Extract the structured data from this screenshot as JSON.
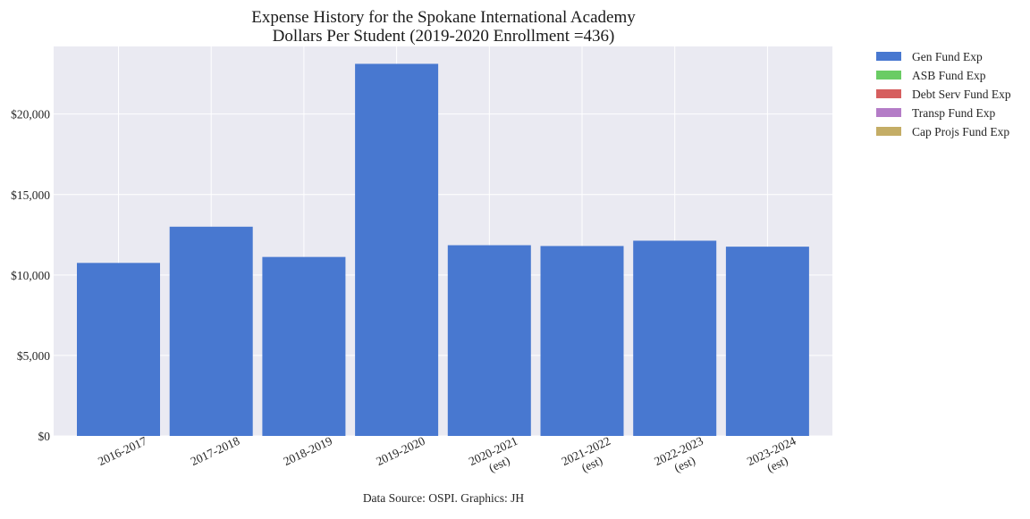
{
  "chart_data": {
    "type": "bar",
    "title_lines": [
      "Expense History for the Spokane International Academy",
      "Dollars Per Student (2019-2020 Enrollment =436)"
    ],
    "categories": [
      [
        "2016-2017"
      ],
      [
        "2017-2018"
      ],
      [
        "2018-2019"
      ],
      [
        "2019-2020"
      ],
      [
        "2020-2021",
        "(est)"
      ],
      [
        "2021-2022",
        "(est)"
      ],
      [
        "2022-2023",
        "(est)"
      ],
      [
        "2023-2024",
        "(est)"
      ]
    ],
    "series": [
      {
        "name": "Gen Fund Exp",
        "color": "#4878d0",
        "values": [
          10750,
          13000,
          11120,
          23120,
          11850,
          11800,
          12130,
          11760
        ]
      },
      {
        "name": "ASB Fund Exp",
        "color": "#6acc64",
        "values": [
          0,
          0,
          0,
          0,
          0,
          0,
          0,
          0
        ]
      },
      {
        "name": "Debt Serv Fund Exp",
        "color": "#d65f5f",
        "values": [
          0,
          0,
          0,
          0,
          0,
          0,
          0,
          0
        ]
      },
      {
        "name": "Transp Fund Exp",
        "color": "#b47cc7",
        "values": [
          0,
          0,
          0,
          0,
          0,
          0,
          0,
          0
        ]
      },
      {
        "name": "Cap Projs Fund Exp",
        "color": "#c4ad66",
        "values": [
          0,
          0,
          0,
          0,
          0,
          0,
          0,
          0
        ]
      }
    ],
    "stacked": true,
    "ylim": [
      0,
      24200
    ],
    "yticks": [
      {
        "value": 0,
        "label": "$0"
      },
      {
        "value": 5000,
        "label": "$5,000"
      },
      {
        "value": 10000,
        "label": "$10,000"
      },
      {
        "value": 15000,
        "label": "$15,000"
      },
      {
        "value": 20000,
        "label": "$20,000"
      }
    ],
    "grid": true,
    "legend_position": "outside-right",
    "source_note": "Data Source: OSPI. Graphics: JH"
  }
}
